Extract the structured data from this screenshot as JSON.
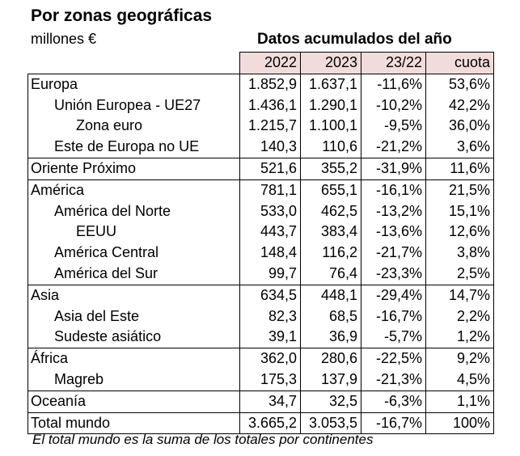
{
  "title": "Por zonas geográficas",
  "unit": "millones €",
  "subtitle": "Datos acumulados del año",
  "columns": [
    "2022",
    "2023",
    "23/22",
    "cuota"
  ],
  "rows": [
    {
      "name": "Europa",
      "level": 0,
      "group_start": true,
      "values": [
        "1.852,9",
        "1.637,1",
        "-11,6%",
        "53,6%"
      ]
    },
    {
      "name": "Unión Europea - UE27",
      "level": 1,
      "group_start": false,
      "values": [
        "1.436,1",
        "1.290,1",
        "-10,2%",
        "42,2%"
      ]
    },
    {
      "name": "Zona euro",
      "level": 2,
      "group_start": false,
      "values": [
        "1.215,7",
        "1.100,1",
        "-9,5%",
        "36,0%"
      ]
    },
    {
      "name": "Este de Europa no UE",
      "level": 1,
      "group_start": false,
      "values": [
        "140,3",
        "110,6",
        "-21,2%",
        "3,6%"
      ]
    },
    {
      "name": "Oriente Próximo",
      "level": 0,
      "group_start": true,
      "values": [
        "521,6",
        "355,2",
        "-31,9%",
        "11,6%"
      ]
    },
    {
      "name": "América",
      "level": 0,
      "group_start": true,
      "values": [
        "781,1",
        "655,1",
        "-16,1%",
        "21,5%"
      ]
    },
    {
      "name": "América del Norte",
      "level": 1,
      "group_start": false,
      "values": [
        "533,0",
        "462,5",
        "-13,2%",
        "15,1%"
      ]
    },
    {
      "name": "EEUU",
      "level": 2,
      "group_start": false,
      "values": [
        "443,7",
        "383,4",
        "-13,6%",
        "12,6%"
      ]
    },
    {
      "name": "América Central",
      "level": 1,
      "group_start": false,
      "values": [
        "148,4",
        "116,2",
        "-21,7%",
        "3,8%"
      ]
    },
    {
      "name": "América del Sur",
      "level": 1,
      "group_start": false,
      "values": [
        "99,7",
        "76,4",
        "-23,3%",
        "2,5%"
      ]
    },
    {
      "name": "Asia",
      "level": 0,
      "group_start": true,
      "values": [
        "634,5",
        "448,1",
        "-29,4%",
        "14,7%"
      ]
    },
    {
      "name": "Asia del Este",
      "level": 1,
      "group_start": false,
      "values": [
        "82,3",
        "68,5",
        "-16,7%",
        "2,2%"
      ]
    },
    {
      "name": "Sudeste asiático",
      "level": 1,
      "group_start": false,
      "values": [
        "39,1",
        "36,9",
        "-5,7%",
        "1,2%"
      ]
    },
    {
      "name": "África",
      "level": 0,
      "group_start": true,
      "values": [
        "362,0",
        "280,6",
        "-22,5%",
        "9,2%"
      ]
    },
    {
      "name": "Magreb",
      "level": 1,
      "group_start": false,
      "values": [
        "175,3",
        "137,9",
        "-21,3%",
        "4,5%"
      ]
    },
    {
      "name": "Oceanía",
      "level": 0,
      "group_start": true,
      "values": [
        "34,7",
        "32,5",
        "-6,3%",
        "1,1%"
      ]
    },
    {
      "name": "Total mundo",
      "level": 0,
      "group_start": true,
      "values": [
        "3.665,2",
        "3.053,5",
        "-16,7%",
        "100%"
      ]
    }
  ],
  "footnote": "El total mundo es la suma de los totales por continentes",
  "colors": {
    "header_bg": "#f2dcdb",
    "border": "#000000",
    "text": "#000000"
  }
}
